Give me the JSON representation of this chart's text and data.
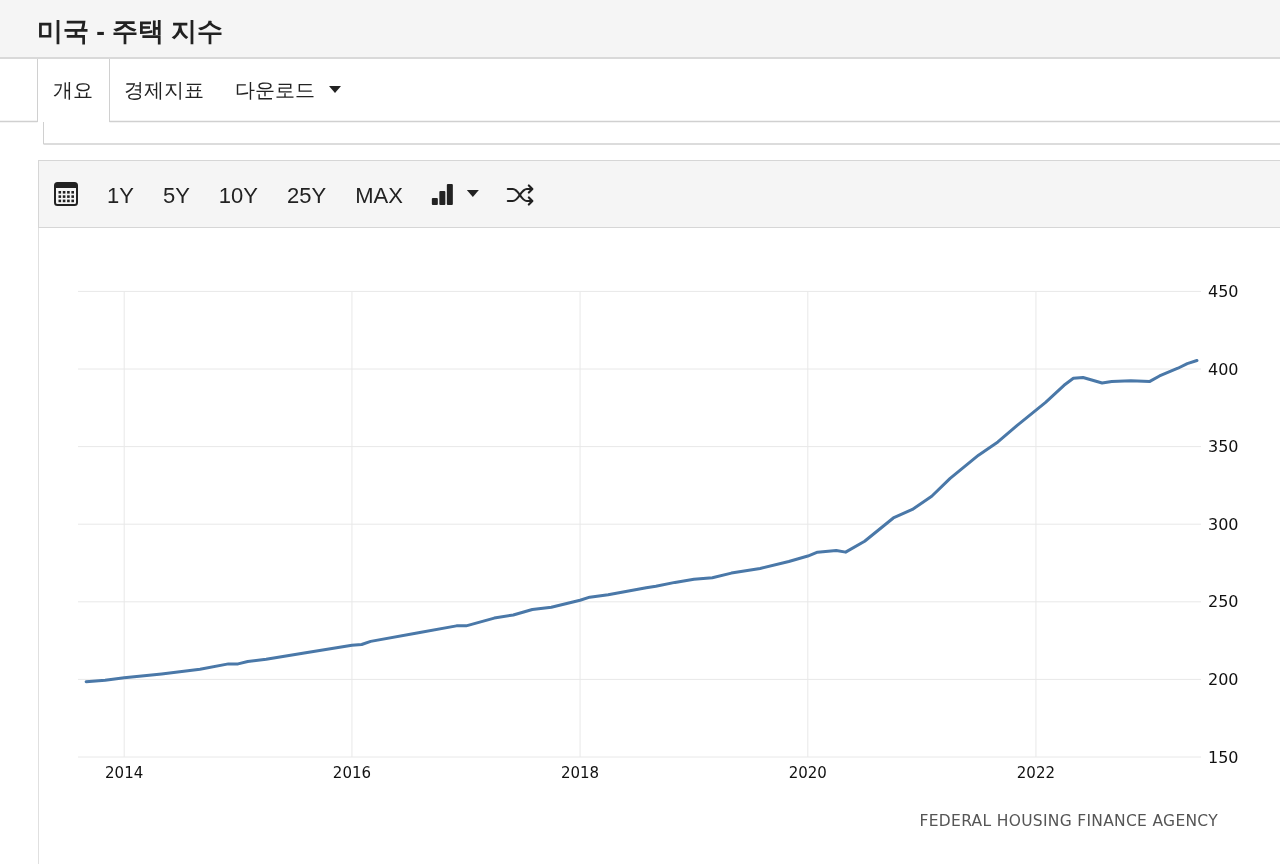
{
  "chart_data": {
    "type": "line",
    "title": "미국 - 주택 지수",
    "x": [
      "2013-09",
      "2013-11",
      "2014-01",
      "2014-05",
      "2014-09",
      "2014-12",
      "2015-01",
      "2015-02",
      "2015-04",
      "2015-08",
      "2016-01",
      "2016-02",
      "2016-03",
      "2016-08",
      "2016-12",
      "2017-01",
      "2017-04",
      "2017-06",
      "2017-08",
      "2017-10",
      "2018-01",
      "2018-02",
      "2018-04",
      "2018-08",
      "2018-09",
      "2018-11",
      "2019-01",
      "2019-03",
      "2019-05",
      "2019-08",
      "2019-11",
      "2020-01",
      "2020-02",
      "2020-04",
      "2020-05",
      "2020-07",
      "2020-10",
      "2020-12",
      "2021-02",
      "2021-04",
      "2021-07",
      "2021-09",
      "2021-11",
      "2022-02",
      "2022-04",
      "2022-05",
      "2022-06",
      "2022-08",
      "2022-09",
      "2022-11",
      "2023-01",
      "2023-02",
      "2023-04",
      "2023-05",
      "2023-06"
    ],
    "series": [
      {
        "color": "#4a78a8",
        "values": [
          198.5,
          199.5,
          201,
          203.5,
          206.5,
          210,
          210,
          211.5,
          213,
          217,
          222,
          222.5,
          224.5,
          230,
          234.5,
          234.5,
          239.5,
          241.5,
          245,
          246.5,
          251,
          253,
          254.5,
          259,
          260,
          262.5,
          264.5,
          265.5,
          268.5,
          271.5,
          276,
          279.5,
          282,
          283,
          282,
          289,
          304,
          309.5,
          318,
          329.5,
          344.5,
          353,
          363.5,
          378.5,
          389.5,
          394,
          394.5,
          391,
          392,
          392.5,
          392,
          395.5,
          400.5,
          403.5,
          405.5
        ]
      }
    ],
    "xlim": [
      "2013-08-06",
      "2023-06-14"
    ],
    "ylim": [
      150,
      450
    ],
    "xticks": [
      "2014",
      "2016",
      "2018",
      "2020",
      "2022"
    ],
    "yticks": [
      150,
      200,
      250,
      300,
      350,
      400,
      450
    ],
    "grid": true,
    "annotations": [
      "개요",
      "경제지표",
      "다운로드",
      "1Y",
      "5Y",
      "10Y",
      "25Y",
      "MAX",
      "FEDERAL HOUSING FINANCE AGENCY"
    ]
  }
}
